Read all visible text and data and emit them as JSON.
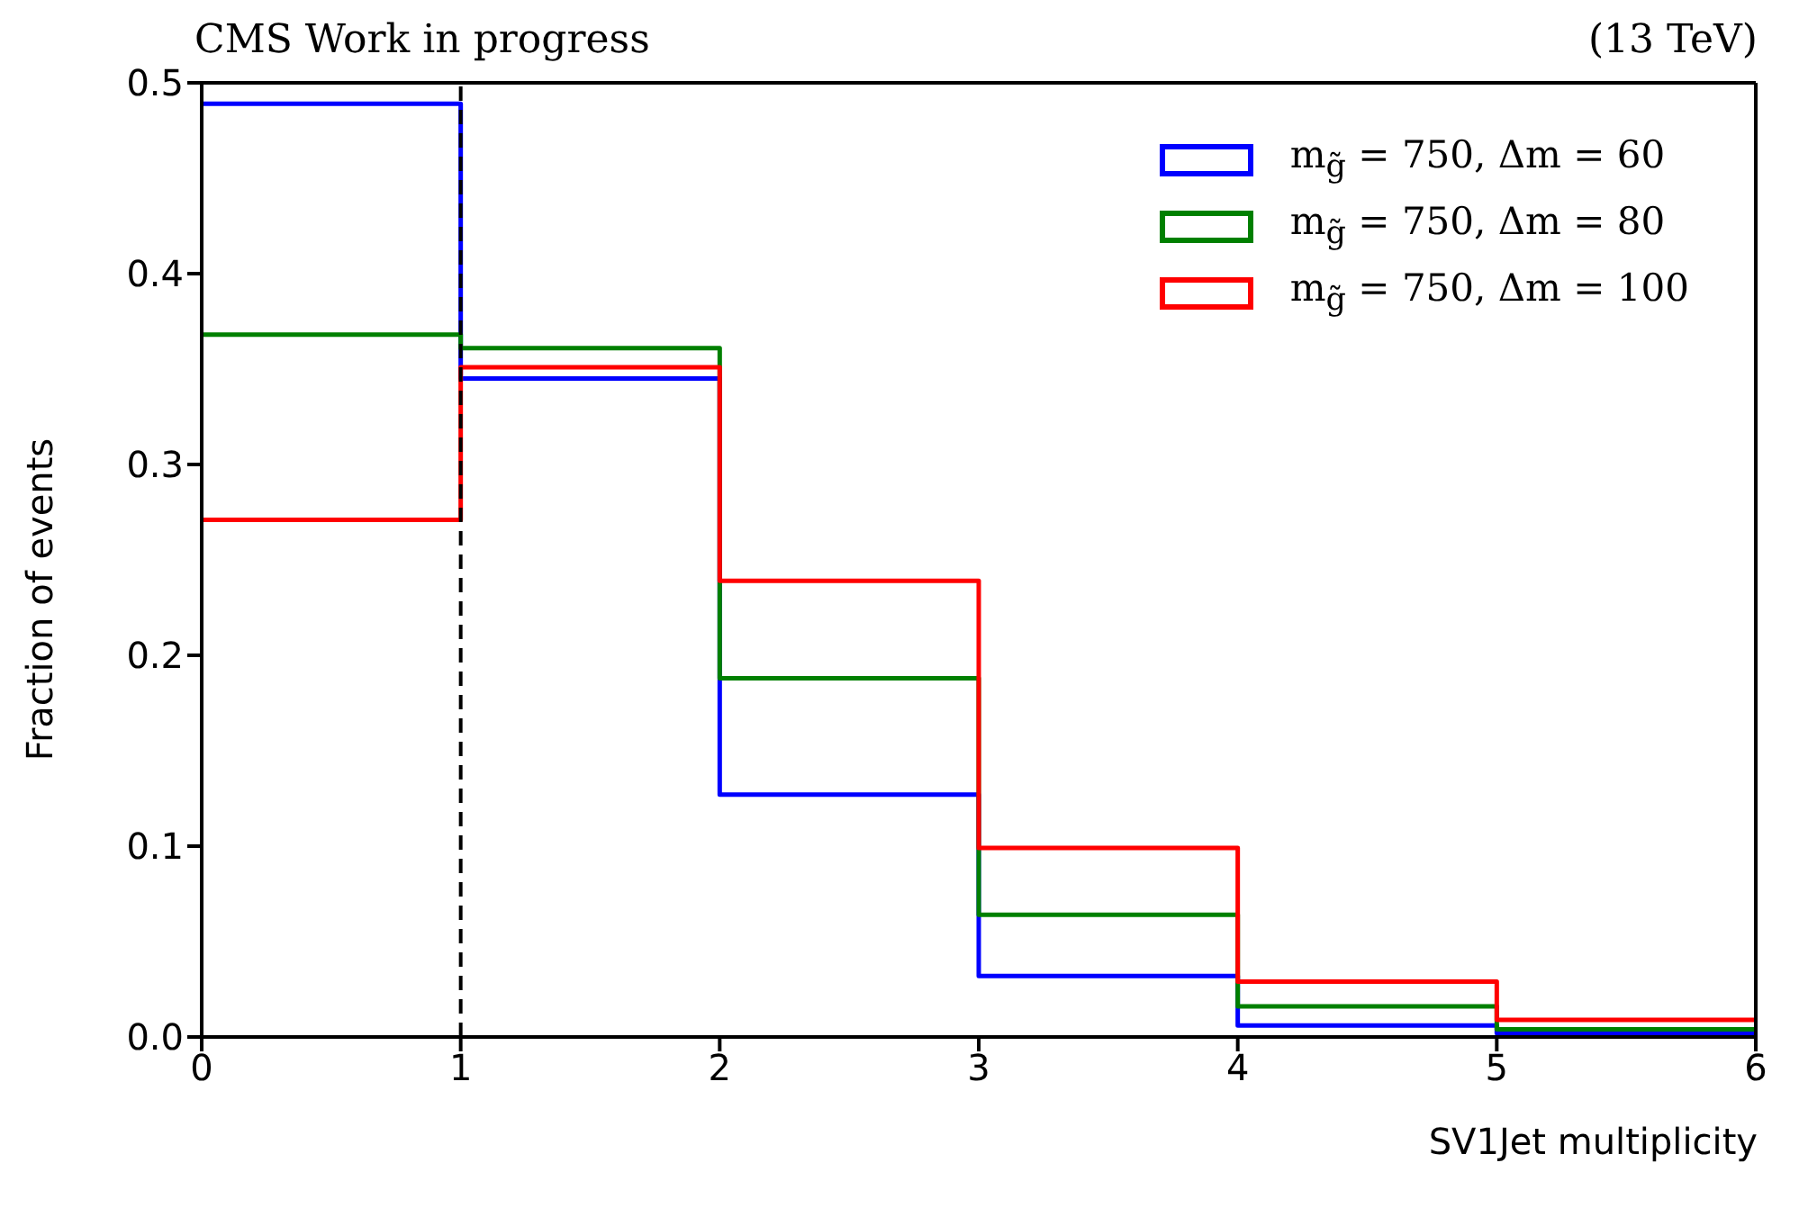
{
  "chart_data": {
    "type": "histogram",
    "title": "CMS Work in progress",
    "annotations": [
      "(13 TeV)"
    ],
    "xlabel": "SV1Jet multiplicity",
    "ylabel": "Fraction of events",
    "bins": [
      0,
      1,
      2,
      3,
      4,
      5,
      6
    ],
    "series": [
      {
        "name": "m$_{g̃}$ = 750, Δm = 60",
        "color": "#0000ff",
        "values": [
          0.489,
          0.345,
          0.127,
          0.032,
          0.006,
          0.002
        ]
      },
      {
        "name": "m$_{g̃}$ = 750, Δm = 80",
        "color": "#008000",
        "values": [
          0.368,
          0.361,
          0.188,
          0.064,
          0.016,
          0.004
        ]
      },
      {
        "name": "m$_{g̃}$ = 750, Δm = 100",
        "color": "#ff0000",
        "values": [
          0.271,
          0.351,
          0.239,
          0.099,
          0.029,
          0.009
        ]
      }
    ],
    "xlim": [
      0,
      6
    ],
    "xticks": [
      0,
      1,
      2,
      3,
      4,
      5,
      6
    ],
    "ylim": [
      0,
      0.5
    ],
    "yticks": [
      {
        "value": 0,
        "label": "0.0"
      },
      {
        "value": 0.1,
        "label": "0.1"
      },
      {
        "value": 0.2,
        "label": "0.2"
      },
      {
        "value": 0.3,
        "label": "0.3"
      },
      {
        "value": 0.4,
        "label": "0.4"
      },
      {
        "value": 0.5,
        "label": "0.5"
      }
    ],
    "ref_lines": [
      {
        "axis": "x",
        "value": 1,
        "color": "#000000",
        "line_style": "dashed"
      }
    ],
    "legend": "top right",
    "grid": false
  }
}
